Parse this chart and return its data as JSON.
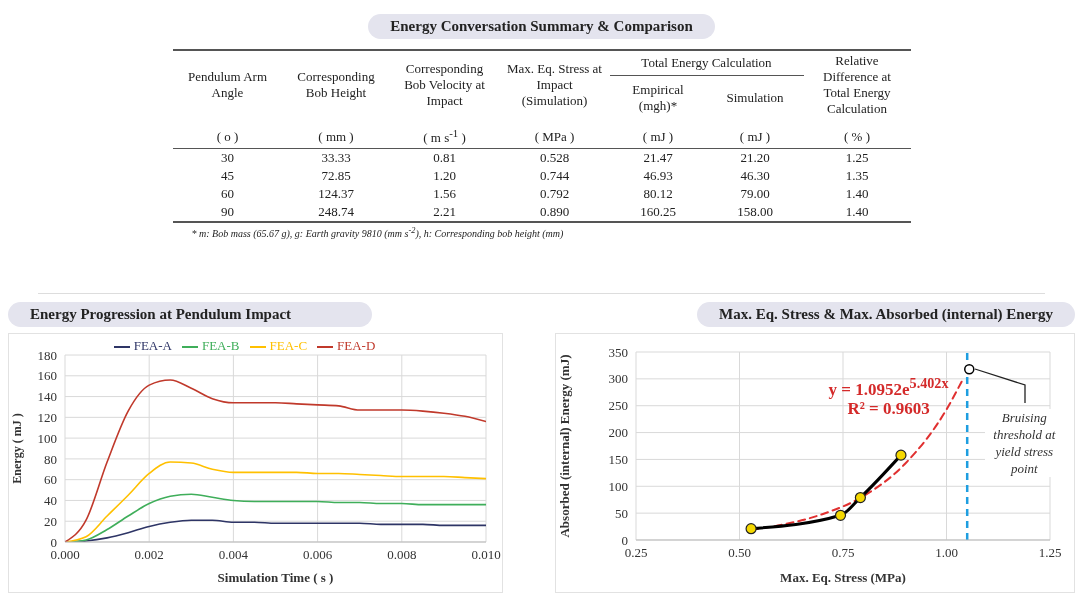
{
  "chart_data": [
    {
      "type": "other",
      "title": "Energy Conversation Summary & Comparison",
      "annotations": [
        "Pendulum Arm Angle",
        "Corresponding Bob Height",
        "Corresponding Bob Velocity at Impact",
        "Max. Eq. Stress at Impact (Simulation)",
        "Total Energy Calculation",
        "Empirical (mgh)*",
        "Simulation",
        "Relative Difference at Total Energy Calculation",
        "( o )",
        "( mm )",
        "( m s$^{-1}$ )",
        "( MPa )",
        "( mJ )",
        "( mJ )",
        "( % )",
        "30",
        "33.33",
        "0.81",
        "0.528",
        "21.47",
        "21.20",
        "1.25",
        "45",
        "72.85",
        "1.20",
        "0.744",
        "46.93",
        "46.30",
        "1.35",
        "60",
        "124.37",
        "1.56",
        "0.792",
        "80.12",
        "79.00",
        "1.40",
        "90",
        "248.74",
        "2.21",
        "0.890",
        "160.25",
        "158.00",
        "1.40",
        "* m: Bob mass (65.67 g), g: Earth gravity 9810 (mm s$^{-2}$), h: Corresponding bob height (mm)"
      ]
    },
    {
      "type": "line",
      "title": "Energy Progression at Pendulum Impact",
      "xlabel": "Simulation Time ( s )",
      "ylabel": "Energy ( mJ )",
      "legend": "top",
      "grid": true,
      "x": [
        0,
        0.0005,
        0.001,
        0.0015,
        0.002,
        0.0025,
        0.003,
        0.0035,
        0.004,
        0.0045,
        0.005,
        0.0055,
        0.006,
        0.0065,
        0.007,
        0.0075,
        0.008,
        0.0085,
        0.009,
        0.0095,
        0.01
      ],
      "xlim": [
        0,
        0.01
      ],
      "xticks": [
        {
          "value": 0,
          "label": "0.000"
        },
        {
          "value": 0.002,
          "label": "0.002"
        },
        {
          "value": 0.004,
          "label": "0.004"
        },
        {
          "value": 0.006,
          "label": "0.006"
        },
        {
          "value": 0.008,
          "label": "0.008"
        },
        {
          "value": 0.01,
          "label": "0.010"
        }
      ],
      "ylim": [
        0,
        180
      ],
      "yticks": [
        0,
        20,
        40,
        60,
        80,
        100,
        120,
        140,
        160,
        180
      ],
      "series": [
        {
          "name": "FEA-A",
          "color": "#2e3566",
          "values": [
            0,
            1,
            4,
            9,
            15,
            19,
            21,
            21,
            19,
            19,
            18,
            18,
            18,
            18,
            18,
            17,
            17,
            17,
            16,
            16,
            16
          ]
        },
        {
          "name": "FEA-B",
          "color": "#3fae5a",
          "values": [
            0,
            2,
            12,
            25,
            37,
            44,
            46,
            43,
            40,
            39,
            39,
            39,
            39,
            38,
            38,
            37,
            37,
            36,
            36,
            36,
            36
          ]
        },
        {
          "name": "FEA-C",
          "color": "#ffc000",
          "values": [
            0,
            5,
            25,
            45,
            66,
            77,
            76,
            70,
            67,
            67,
            67,
            67,
            66,
            66,
            65,
            64,
            63,
            63,
            63,
            62,
            61
          ]
        },
        {
          "name": "FEA-D",
          "color": "#c0392b",
          "values": [
            0,
            21,
            77,
            126,
            151,
            156,
            148,
            138,
            134,
            134,
            134,
            133,
            132,
            131,
            127,
            127,
            127,
            126,
            124,
            121,
            116
          ]
        }
      ]
    },
    {
      "type": "line",
      "title": "Max. Eq. Stress & Max. Absorbed (internal) Energy",
      "xlabel": "Max. Eq. Stress (MPa)",
      "ylabel": "Absorbed (internal) Energy (mJ)",
      "grid": true,
      "xlim": [
        0.25,
        1.25
      ],
      "xticks": [
        0.25,
        {
          "value": 0.5,
          "label": "0.50"
        },
        0.75,
        {
          "value": 1,
          "label": "1.00"
        },
        1.25
      ],
      "ylim": [
        0,
        350
      ],
      "yticks": [
        0,
        50,
        100,
        150,
        200,
        250,
        300,
        350
      ],
      "ref_lines": [
        {
          "axis": "x",
          "value": 1.05,
          "color": "#1e9ee0",
          "line_style": "dashed"
        }
      ],
      "annotations": [
        "y = 1.0952e$^{5.402x}$",
        "R² = 0.9603",
        {
          "text": "Bruising threshold at yield stress point",
          "x": 1.055,
          "y": 318
        }
      ],
      "series": [
        {
          "type": "line",
          "color": "#e03030",
          "line_style": "dashed",
          "marker": "none",
          "x": [
            0.528,
            0.6,
            0.7,
            0.8,
            0.9,
            1.0,
            1.04
          ],
          "values": [
            19,
            28,
            48,
            82,
            142,
            243,
            300
          ]
        },
        {
          "type": "line",
          "color": "#000000",
          "marker": "circle",
          "x": [
            0.528,
            0.744,
            0.792,
            0.89
          ],
          "values": [
            21,
            46,
            79,
            158
          ]
        },
        {
          "type": "scatter",
          "color": "#000000",
          "marker": "circle",
          "x": [
            1.055
          ],
          "values": [
            318
          ]
        }
      ]
    }
  ]
}
